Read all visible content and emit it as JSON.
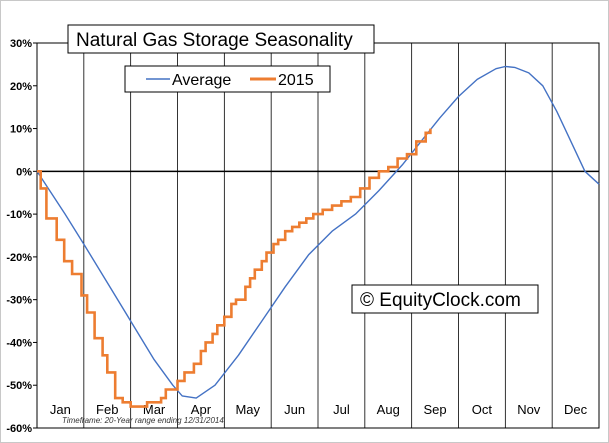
{
  "chart_data": {
    "type": "line",
    "title": "Natural Gas Storage Seasonality",
    "ylim": [
      -60,
      30
    ],
    "y_ticks": [
      "30%",
      "20%",
      "10%",
      "0%",
      "-10%",
      "-20%",
      "-30%",
      "-40%",
      "-50%",
      "-60%"
    ],
    "categories": [
      "Jan",
      "Feb",
      "Mar",
      "Apr",
      "May",
      "Jun",
      "Jul",
      "Aug",
      "Sep",
      "Oct",
      "Nov",
      "Dec"
    ],
    "x_unit": "month (1 = Jan 1, 13 = Dec 31)",
    "grid": "vertical month lines",
    "legend_position": "top-left",
    "series": [
      {
        "name": "Average",
        "color": "#4472c4",
        "style": "smooth",
        "x": [
          1.0,
          1.3,
          1.6,
          2.0,
          2.5,
          3.0,
          3.5,
          3.9,
          4.1,
          4.4,
          4.8,
          5.3,
          5.8,
          6.3,
          6.8,
          7.3,
          7.8,
          8.3,
          8.8,
          9.2,
          9.6,
          10.0,
          10.4,
          10.8,
          11.0,
          11.2,
          11.5,
          11.8,
          12.1,
          12.4,
          12.7,
          13.0
        ],
        "values": [
          0.0,
          -5.0,
          -10.0,
          -17.0,
          -26.0,
          -35.0,
          -44.0,
          -50.0,
          -52.5,
          -53.0,
          -50.0,
          -43.0,
          -35.0,
          -27.0,
          -19.5,
          -14.0,
          -10.0,
          -4.5,
          1.5,
          7.0,
          12.5,
          17.5,
          21.5,
          24.0,
          24.5,
          24.3,
          23.0,
          20.0,
          14.0,
          7.0,
          0.0,
          -3.0
        ]
      },
      {
        "name": "2015",
        "color": "#ed7d31",
        "style": "step",
        "x": [
          1.0,
          1.08,
          1.2,
          1.25,
          1.32,
          1.42,
          1.5,
          1.58,
          1.68,
          1.75,
          1.83,
          1.95,
          2.0,
          2.07,
          2.15,
          2.23,
          2.32,
          2.4,
          2.5,
          2.57,
          2.67,
          2.75,
          2.83,
          2.9,
          3.0,
          3.1,
          3.2,
          3.35,
          3.5,
          3.65,
          3.75,
          3.85,
          4.0,
          4.15,
          4.35,
          4.5,
          4.6,
          4.75,
          4.85,
          5.0,
          5.15,
          5.25,
          5.45,
          5.55,
          5.65,
          5.8,
          5.9,
          6.05,
          6.15,
          6.3,
          6.45,
          6.6,
          6.75,
          6.9,
          7.1,
          7.3,
          7.5,
          7.7,
          7.9,
          8.1,
          8.3,
          8.5,
          8.7,
          8.9,
          9.1,
          9.3,
          9.4
        ],
        "values": [
          0.0,
          -4.0,
          -11.0,
          -11.0,
          -11.0,
          -16.0,
          -16.0,
          -21.0,
          -21.0,
          -24.0,
          -24.0,
          -29.0,
          -29.0,
          -33.0,
          -33.0,
          -39.0,
          -39.0,
          -43.0,
          -47.0,
          -47.0,
          -53.0,
          -53.0,
          -54.0,
          -54.0,
          -55.0,
          -55.0,
          -55.0,
          -54.0,
          -54.0,
          -53.0,
          -51.0,
          -51.0,
          -49.0,
          -47.0,
          -45.0,
          -42.0,
          -40.0,
          -38.0,
          -36.0,
          -34.0,
          -31.0,
          -30.0,
          -27.0,
          -25.0,
          -23.0,
          -21.0,
          -19.0,
          -17.0,
          -16.0,
          -14.0,
          -13.0,
          -12.0,
          -11.0,
          -10.0,
          -9.0,
          -8.0,
          -7.0,
          -6.0,
          -4.0,
          -1.5,
          0.0,
          1.0,
          3.0,
          4.0,
          7.0,
          9.0,
          10.0
        ]
      }
    ]
  },
  "chart": {
    "timeframe_note": "Timeframe: 20-Year range ending 12/31/2014",
    "copyright": "© EquityClock.com"
  }
}
